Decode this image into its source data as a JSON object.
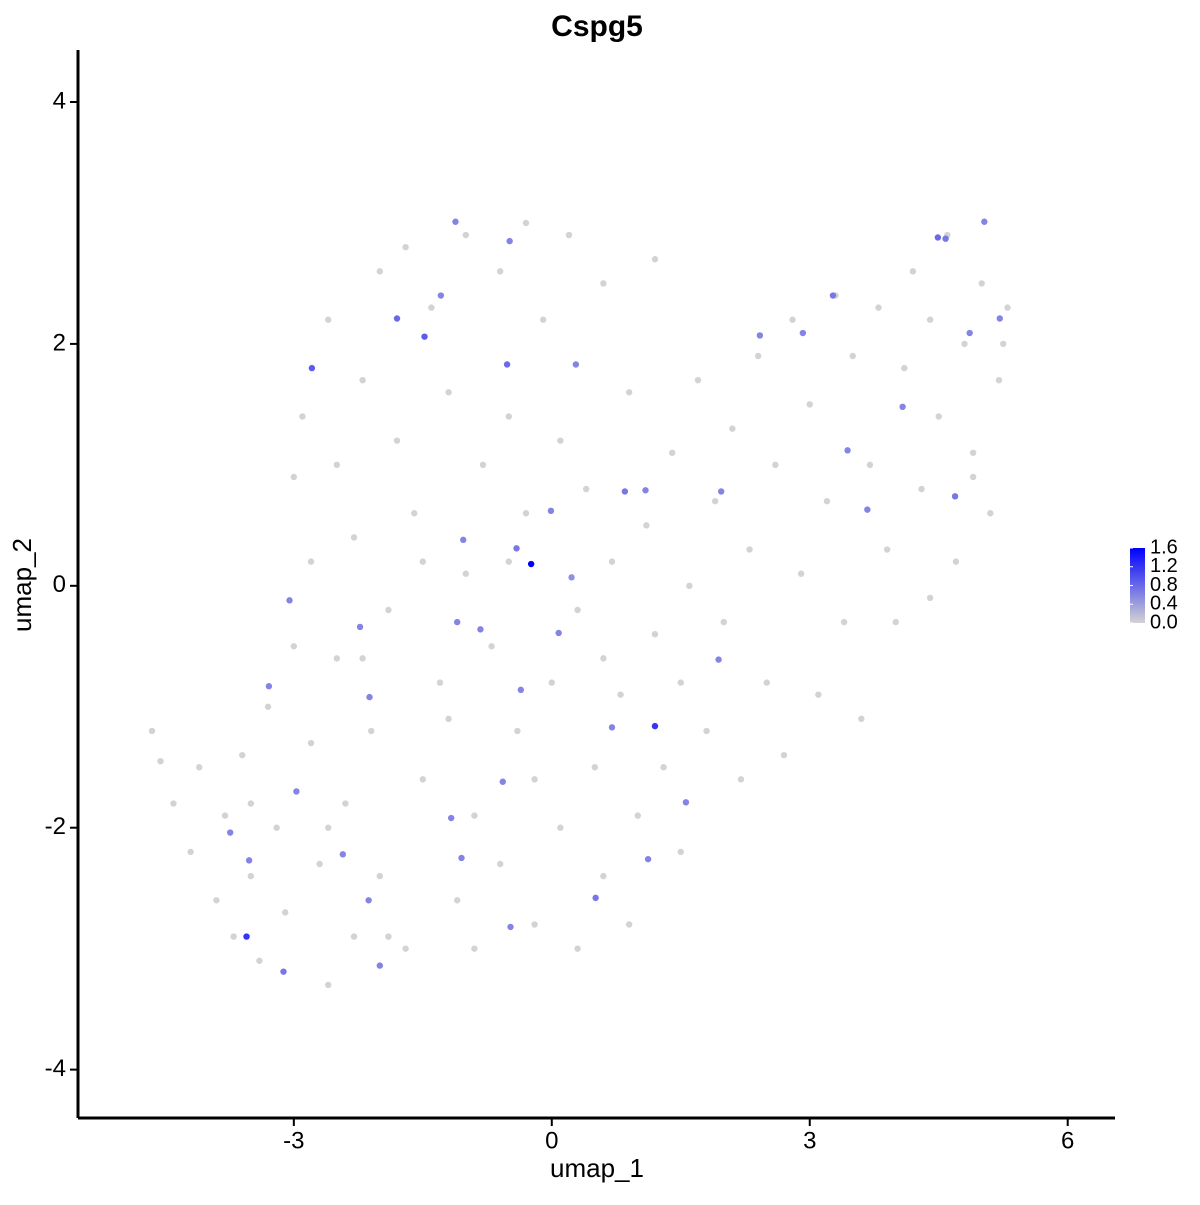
{
  "chart_data": {
    "type": "scatter",
    "title": "Cspg5",
    "x_label": "umap_1",
    "y_label": "umap_2",
    "xlim": [
      -5.51,
      6.55
    ],
    "ylim": [
      -4.4,
      4.43
    ],
    "xticks": [
      -3,
      0,
      3,
      6
    ],
    "yticks": [
      -4,
      -2,
      0,
      2,
      4
    ],
    "colorbar": {
      "low": "#d3d3d3",
      "high": "#0000ff",
      "clim": [
        0,
        1.6
      ],
      "ticks": [
        {
          "value": 0,
          "label": "0.0"
        },
        0.4,
        0.8,
        1.2,
        1.6
      ]
    },
    "points": [
      {
        "x": -4.65,
        "y": -1.2,
        "value": 0
      },
      {
        "x": -4.55,
        "y": -1.45,
        "value": 0
      },
      {
        "x": -4.4,
        "y": -1.8,
        "value": 0
      },
      {
        "x": -4.2,
        "y": -2.2,
        "value": 0
      },
      {
        "x": -4.1,
        "y": -1.5,
        "value": 0
      },
      {
        "x": -3.9,
        "y": -2.6,
        "value": 0
      },
      {
        "x": -3.8,
        "y": -1.9,
        "value": 0
      },
      {
        "x": -3.7,
        "y": -2.9,
        "value": 0
      },
      {
        "x": -3.6,
        "y": -1.4,
        "value": 0
      },
      {
        "x": -3.5,
        "y": -2.4,
        "value": 0
      },
      {
        "x": -3.4,
        "y": -3.1,
        "value": 0
      },
      {
        "x": -3.3,
        "y": -1.0,
        "value": 0
      },
      {
        "x": -3.2,
        "y": -2.0,
        "value": 0
      },
      {
        "x": -3.1,
        "y": -2.7,
        "value": 0
      },
      {
        "x": -3.0,
        "y": -0.5,
        "value": 0
      },
      {
        "x": -3.0,
        "y": 0.9,
        "value": 0
      },
      {
        "x": -2.9,
        "y": 1.4,
        "value": 0
      },
      {
        "x": -2.8,
        "y": 0.2,
        "value": 0
      },
      {
        "x": -2.8,
        "y": -1.3,
        "value": 0
      },
      {
        "x": -2.7,
        "y": -2.3,
        "value": 0
      },
      {
        "x": -2.6,
        "y": -3.3,
        "value": 0
      },
      {
        "x": -2.6,
        "y": 2.2,
        "value": 0
      },
      {
        "x": -2.5,
        "y": 1.0,
        "value": 0
      },
      {
        "x": -2.5,
        "y": -0.6,
        "value": 0
      },
      {
        "x": -2.4,
        "y": -1.8,
        "value": 0
      },
      {
        "x": -2.3,
        "y": -2.9,
        "value": 0
      },
      {
        "x": -2.3,
        "y": 0.4,
        "value": 0
      },
      {
        "x": -2.2,
        "y": 1.7,
        "value": 0
      },
      {
        "x": -2.1,
        "y": -1.2,
        "value": 0
      },
      {
        "x": -2.0,
        "y": 2.6,
        "value": 0
      },
      {
        "x": -2.0,
        "y": -2.4,
        "value": 0
      },
      {
        "x": -1.9,
        "y": -0.2,
        "value": 0
      },
      {
        "x": -1.8,
        "y": 1.2,
        "value": 0
      },
      {
        "x": -1.7,
        "y": -3.0,
        "value": 0
      },
      {
        "x": -1.7,
        "y": 2.8,
        "value": 0
      },
      {
        "x": -1.6,
        "y": 0.6,
        "value": 0
      },
      {
        "x": -1.5,
        "y": -1.6,
        "value": 0
      },
      {
        "x": -1.4,
        "y": 2.3,
        "value": 0
      },
      {
        "x": -1.3,
        "y": -0.8,
        "value": 0
      },
      {
        "x": -1.2,
        "y": 1.6,
        "value": 0
      },
      {
        "x": -1.1,
        "y": -2.6,
        "value": 0
      },
      {
        "x": -1.0,
        "y": 2.9,
        "value": 0
      },
      {
        "x": -1.0,
        "y": 0.1,
        "value": 0
      },
      {
        "x": -0.9,
        "y": -1.9,
        "value": 0
      },
      {
        "x": -0.8,
        "y": 1.0,
        "value": 0
      },
      {
        "x": -0.7,
        "y": -0.5,
        "value": 0
      },
      {
        "x": -0.6,
        "y": 2.6,
        "value": 0
      },
      {
        "x": -0.6,
        "y": -2.3,
        "value": 0
      },
      {
        "x": -0.5,
        "y": 1.4,
        "value": 0
      },
      {
        "x": -0.4,
        "y": -1.2,
        "value": 0
      },
      {
        "x": -0.3,
        "y": 3.0,
        "value": 0
      },
      {
        "x": -0.3,
        "y": 0.6,
        "value": 0
      },
      {
        "x": -0.2,
        "y": -2.8,
        "value": 0
      },
      {
        "x": -0.1,
        "y": 2.2,
        "value": 0
      },
      {
        "x": 0.0,
        "y": -0.8,
        "value": 0
      },
      {
        "x": 0.1,
        "y": 1.2,
        "value": 0
      },
      {
        "x": 0.1,
        "y": -2.0,
        "value": 0
      },
      {
        "x": 0.2,
        "y": 2.9,
        "value": 0
      },
      {
        "x": 0.3,
        "y": -0.2,
        "value": 0
      },
      {
        "x": 0.3,
        "y": -3.0,
        "value": 0
      },
      {
        "x": 0.4,
        "y": 0.8,
        "value": 0
      },
      {
        "x": 0.5,
        "y": -1.5,
        "value": 0
      },
      {
        "x": 0.6,
        "y": 2.5,
        "value": 0
      },
      {
        "x": 0.6,
        "y": -2.4,
        "value": 0
      },
      {
        "x": 0.7,
        "y": 0.2,
        "value": 0
      },
      {
        "x": 0.8,
        "y": -0.9,
        "value": 0
      },
      {
        "x": 0.9,
        "y": 1.6,
        "value": 0
      },
      {
        "x": 0.9,
        "y": -2.8,
        "value": 0
      },
      {
        "x": 1.0,
        "y": -1.9,
        "value": 0
      },
      {
        "x": 1.1,
        "y": 0.5,
        "value": 0
      },
      {
        "x": 1.2,
        "y": 2.7,
        "value": 0
      },
      {
        "x": 1.2,
        "y": -0.4,
        "value": 0
      },
      {
        "x": 1.3,
        "y": -1.5,
        "value": 0
      },
      {
        "x": 1.4,
        "y": 1.1,
        "value": 0
      },
      {
        "x": 1.5,
        "y": -2.2,
        "value": 0
      },
      {
        "x": 1.6,
        "y": 0.0,
        "value": 0
      },
      {
        "x": 1.7,
        "y": 1.7,
        "value": 0
      },
      {
        "x": 1.8,
        "y": -1.2,
        "value": 0
      },
      {
        "x": 1.9,
        "y": 0.7,
        "value": 0
      },
      {
        "x": 2.0,
        "y": -0.3,
        "value": 0
      },
      {
        "x": 2.1,
        "y": 1.3,
        "value": 0
      },
      {
        "x": 2.2,
        "y": -1.6,
        "value": 0
      },
      {
        "x": 2.3,
        "y": 0.3,
        "value": 0
      },
      {
        "x": 2.4,
        "y": 1.9,
        "value": 0
      },
      {
        "x": 2.5,
        "y": -0.8,
        "value": 0
      },
      {
        "x": 2.6,
        "y": 1.0,
        "value": 0
      },
      {
        "x": 2.7,
        "y": -1.4,
        "value": 0
      },
      {
        "x": 2.8,
        "y": 2.2,
        "value": 0
      },
      {
        "x": 2.9,
        "y": 0.1,
        "value": 0
      },
      {
        "x": 3.0,
        "y": 1.5,
        "value": 0
      },
      {
        "x": 3.1,
        "y": -0.9,
        "value": 0
      },
      {
        "x": 3.2,
        "y": 0.7,
        "value": 0
      },
      {
        "x": 3.3,
        "y": 2.4,
        "value": 0
      },
      {
        "x": 3.4,
        "y": -0.3,
        "value": 0
      },
      {
        "x": 3.5,
        "y": 1.9,
        "value": 0
      },
      {
        "x": 3.6,
        "y": -1.1,
        "value": 0
      },
      {
        "x": 3.7,
        "y": 1.0,
        "value": 0
      },
      {
        "x": 3.8,
        "y": 2.3,
        "value": 0
      },
      {
        "x": 3.9,
        "y": 0.3,
        "value": 0
      },
      {
        "x": 4.0,
        "y": -0.3,
        "value": 0
      },
      {
        "x": 4.1,
        "y": 1.8,
        "value": 0
      },
      {
        "x": 4.2,
        "y": 2.6,
        "value": 0
      },
      {
        "x": 4.3,
        "y": 0.8,
        "value": 0
      },
      {
        "x": 4.4,
        "y": -0.1,
        "value": 0
      },
      {
        "x": 4.5,
        "y": 1.4,
        "value": 0
      },
      {
        "x": 4.6,
        "y": 2.9,
        "value": 0
      },
      {
        "x": 4.7,
        "y": 0.2,
        "value": 0
      },
      {
        "x": 4.8,
        "y": 2.0,
        "value": 0
      },
      {
        "x": 4.9,
        "y": 1.1,
        "value": 0
      },
      {
        "x": 5.0,
        "y": 2.5,
        "value": 0
      },
      {
        "x": 5.1,
        "y": 0.6,
        "value": 0
      },
      {
        "x": 5.2,
        "y": 1.7,
        "value": 0
      },
      {
        "x": 5.3,
        "y": 2.3,
        "value": 0
      },
      {
        "x": 5.25,
        "y": 2.0,
        "value": 0
      },
      {
        "x": 4.9,
        "y": 0.9,
        "value": 0
      },
      {
        "x": 4.4,
        "y": 2.2,
        "value": 0
      },
      {
        "x": -0.2,
        "y": -1.6,
        "value": 0
      },
      {
        "x": -1.2,
        "y": -1.1,
        "value": 0
      },
      {
        "x": -2.6,
        "y": -2.0,
        "value": 0
      },
      {
        "x": -3.5,
        "y": -1.8,
        "value": 0
      },
      {
        "x": -1.9,
        "y": -2.9,
        "value": 0
      },
      {
        "x": -0.9,
        "y": -3.0,
        "value": 0
      },
      {
        "x": 0.6,
        "y": -0.6,
        "value": 0
      },
      {
        "x": 1.5,
        "y": -0.8,
        "value": 0
      },
      {
        "x": -0.5,
        "y": 0.2,
        "value": 0
      },
      {
        "x": -1.5,
        "y": 0.2,
        "value": 0
      },
      {
        "x": -2.2,
        "y": -0.6,
        "value": 0
      },
      {
        "x": 0.23,
        "y": 0.07,
        "value": 0.5
      },
      {
        "x": -0.41,
        "y": 0.31,
        "value": 0.7
      },
      {
        "x": -1.03,
        "y": 0.38,
        "value": 0.6
      },
      {
        "x": -0.01,
        "y": 0.62,
        "value": 0.6
      },
      {
        "x": 0.85,
        "y": 0.78,
        "value": 0.7
      },
      {
        "x": 1.97,
        "y": 0.78,
        "value": 0.6
      },
      {
        "x": 4.49,
        "y": 2.88,
        "value": 0.8
      },
      {
        "x": 4.58,
        "y": 2.87,
        "value": 0.7
      },
      {
        "x": 4.86,
        "y": 2.09,
        "value": 0.6
      },
      {
        "x": 4.69,
        "y": 0.74,
        "value": 0.7
      },
      {
        "x": 3.67,
        "y": 0.63,
        "value": 0.6
      },
      {
        "x": 2.92,
        "y": 2.09,
        "value": 0.6
      },
      {
        "x": 3.27,
        "y": 2.4,
        "value": 0.7
      },
      {
        "x": -3.05,
        "y": -0.12,
        "value": 0.6
      },
      {
        "x": -3.29,
        "y": -0.83,
        "value": 0.6
      },
      {
        "x": -2.12,
        "y": -0.92,
        "value": 0.6
      },
      {
        "x": -2.23,
        "y": -0.34,
        "value": 0.6
      },
      {
        "x": -2.97,
        "y": -1.7,
        "value": 0.6
      },
      {
        "x": -3.12,
        "y": -3.19,
        "value": 0.7
      },
      {
        "x": -2.0,
        "y": -3.14,
        "value": 0.6
      },
      {
        "x": -2.13,
        "y": -2.6,
        "value": 0.6
      },
      {
        "x": 0.51,
        "y": -2.58,
        "value": 0.7
      },
      {
        "x": -0.48,
        "y": -2.82,
        "value": 0.6
      },
      {
        "x": -1.05,
        "y": -2.25,
        "value": 0.6
      },
      {
        "x": 1.12,
        "y": -2.26,
        "value": 0.6
      },
      {
        "x": 1.56,
        "y": -1.79,
        "value": 0.6
      },
      {
        "x": 1.94,
        "y": -0.61,
        "value": 0.6
      },
      {
        "x": 0.7,
        "y": -1.17,
        "value": 0.6
      },
      {
        "x": -0.57,
        "y": -1.62,
        "value": 0.6
      },
      {
        "x": -1.17,
        "y": -1.92,
        "value": 0.6
      },
      {
        "x": -3.74,
        "y": -2.04,
        "value": 0.6
      },
      {
        "x": -3.52,
        "y": -2.27,
        "value": 0.6
      },
      {
        "x": -2.43,
        "y": -2.22,
        "value": 0.6
      },
      {
        "x": -1.29,
        "y": 2.4,
        "value": 0.6
      },
      {
        "x": -1.12,
        "y": 3.01,
        "value": 0.6
      },
      {
        "x": -0.49,
        "y": 2.85,
        "value": 0.6
      },
      {
        "x": 0.28,
        "y": 1.83,
        "value": 0.6
      },
      {
        "x": 1.09,
        "y": 0.79,
        "value": 0.6
      },
      {
        "x": 2.42,
        "y": 2.07,
        "value": 0.6
      },
      {
        "x": 4.08,
        "y": 1.48,
        "value": 0.6
      },
      {
        "x": 5.03,
        "y": 3.01,
        "value": 0.6
      },
      {
        "x": 5.21,
        "y": 2.21,
        "value": 0.6
      },
      {
        "x": 3.44,
        "y": 1.12,
        "value": 0.6
      },
      {
        "x": -1.1,
        "y": -0.3,
        "value": 0.6
      },
      {
        "x": -0.83,
        "y": -0.36,
        "value": 0.6
      },
      {
        "x": -0.36,
        "y": -0.86,
        "value": 0.6
      },
      {
        "x": 0.08,
        "y": -0.39,
        "value": 0.6
      },
      {
        "x": -0.52,
        "y": 1.83,
        "value": 0.8
      },
      {
        "x": -1.8,
        "y": 2.21,
        "value": 0.8
      },
      {
        "x": -2.79,
        "y": 1.8,
        "value": 0.9
      },
      {
        "x": -1.48,
        "y": 2.06,
        "value": 0.9
      },
      {
        "x": 1.2,
        "y": -1.16,
        "value": 1.2
      },
      {
        "x": -3.55,
        "y": -2.9,
        "value": 1.2
      },
      {
        "x": -0.24,
        "y": 0.18,
        "value": 1.6
      }
    ]
  }
}
